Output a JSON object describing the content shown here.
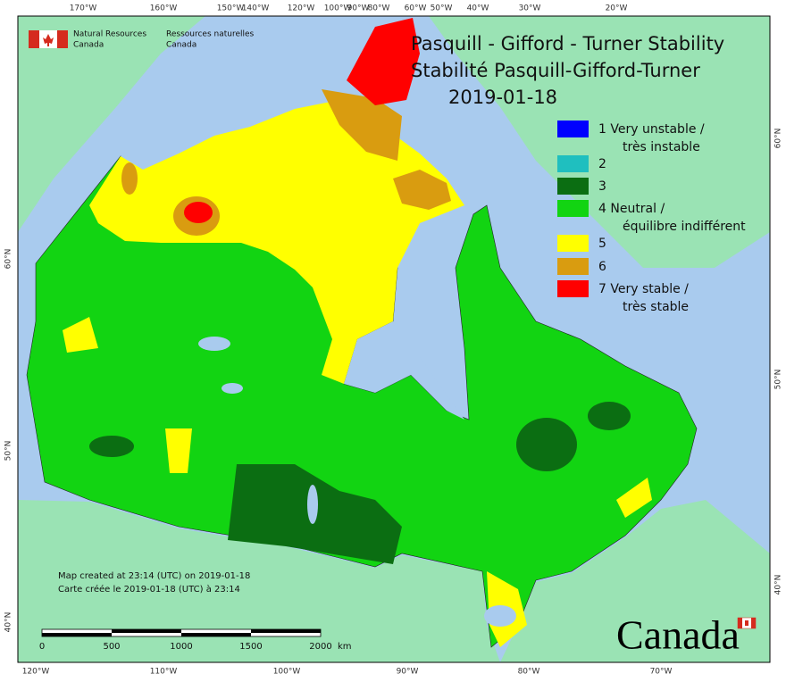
{
  "header": {
    "agency_en": [
      "Natural Resources",
      "Canada"
    ],
    "agency_fr": [
      "Ressources naturelles",
      "Canada"
    ]
  },
  "title": [
    "Pasquill - Gifford - Turner Stability",
    "Stabilité Pasquill-Gifford-Turner",
    "2019-01-18"
  ],
  "legend": [
    {
      "lines": [
        "1 Very unstable /",
        "très instable"
      ],
      "color": "#0000ff"
    },
    {
      "lines": [
        "2"
      ],
      "color": "#1fbfbf"
    },
    {
      "lines": [
        "3"
      ],
      "color": "#0b6e12"
    },
    {
      "lines": [
        "4 Neutral /",
        "équilibre indifférent"
      ],
      "color": "#12d412"
    },
    {
      "lines": [
        "5"
      ],
      "color": "#ffff00"
    },
    {
      "lines": [
        "6"
      ],
      "color": "#d99c10"
    },
    {
      "lines": [
        "7 Very stable /",
        "très stable"
      ],
      "color": "#ff0000"
    }
  ],
  "graticule": {
    "top": [
      "170°W",
      "160°W",
      "150°W",
      "140°W",
      "120°W",
      "100°W",
      "90°W",
      "80°W",
      "60°W",
      "50°W",
      "40°W",
      "30°W",
      "20°W"
    ],
    "bottom": [
      "120°W",
      "110°W",
      "100°W",
      "90°W",
      "80°W",
      "70°W"
    ],
    "left": [
      "60°N",
      "50°N",
      "40°N"
    ],
    "right": [
      "60°N",
      "50°N",
      "40°N"
    ]
  },
  "notes": [
    "Map created at 23:14 (UTC) on 2019-01-18",
    "Carte créée le 2019-01-18 (UTC) à 23:14"
  ],
  "scale_bar": [
    "0",
    "500",
    "1000",
    "1500",
    "2000",
    "km"
  ],
  "wordmark": "Canada"
}
